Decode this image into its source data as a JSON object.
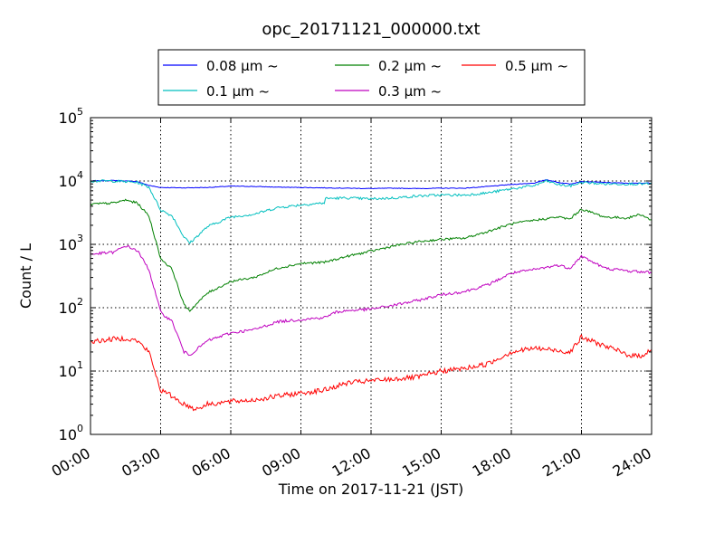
{
  "chart_data": {
    "type": "line",
    "title": "opc_20171121_000000.txt",
    "xlabel": "Time on 2017-11-21 (JST)",
    "ylabel": "Count / L",
    "xlim": [
      "00:00",
      "24:00"
    ],
    "ylim": [
      1,
      100000
    ],
    "yscale": "log",
    "grid": true,
    "legend_position": "top-center",
    "x_tick_labels": [
      "00:00",
      "03:00",
      "06:00",
      "09:00",
      "12:00",
      "15:00",
      "18:00",
      "21:00",
      "24:00"
    ],
    "y_tick_labels": [
      {
        "base": "10",
        "exp": "0",
        "value": 1
      },
      {
        "base": "10",
        "exp": "1",
        "value": 10
      },
      {
        "base": "10",
        "exp": "2",
        "value": 100
      },
      {
        "base": "10",
        "exp": "3",
        "value": 1000
      },
      {
        "base": "10",
        "exp": "4",
        "value": 10000
      },
      {
        "base": "10",
        "exp": "5",
        "value": 100000
      }
    ],
    "series": [
      {
        "name": "0.08 μm ~",
        "color": "#0000ff",
        "points": [
          [
            "00:00",
            10000
          ],
          [
            "01:00",
            10200
          ],
          [
            "02:00",
            9800
          ],
          [
            "02:30",
            8500
          ],
          [
            "03:00",
            7900
          ],
          [
            "04:00",
            7800
          ],
          [
            "05:00",
            7900
          ],
          [
            "06:00",
            8300
          ],
          [
            "07:00",
            8200
          ],
          [
            "08:00",
            8000
          ],
          [
            "09:00",
            7900
          ],
          [
            "10:00",
            7800
          ],
          [
            "11:00",
            7700
          ],
          [
            "12:00",
            7600
          ],
          [
            "13:00",
            7700
          ],
          [
            "14:00",
            7600
          ],
          [
            "15:00",
            7700
          ],
          [
            "16:00",
            7700
          ],
          [
            "17:00",
            8200
          ],
          [
            "18:00",
            8800
          ],
          [
            "19:00",
            9300
          ],
          [
            "19:30",
            10500
          ],
          [
            "20:00",
            9500
          ],
          [
            "20:30",
            9000
          ],
          [
            "21:00",
            9800
          ],
          [
            "22:00",
            9500
          ],
          [
            "23:00",
            9200
          ],
          [
            "24:00",
            9300
          ]
        ]
      },
      {
        "name": "0.1 μm ~",
        "color": "#00bfbf",
        "points": [
          [
            "00:00",
            10000
          ],
          [
            "01:00",
            10000
          ],
          [
            "02:00",
            9500
          ],
          [
            "02:30",
            8000
          ],
          [
            "03:00",
            3500
          ],
          [
            "03:30",
            2800
          ],
          [
            "04:00",
            1300
          ],
          [
            "04:15",
            1050
          ],
          [
            "05:00",
            1900
          ],
          [
            "06:00",
            2700
          ],
          [
            "07:00",
            3000
          ],
          [
            "08:00",
            3800
          ],
          [
            "09:00",
            4200
          ],
          [
            "10:00",
            4500
          ],
          [
            "10:01",
            5300
          ],
          [
            "11:00",
            5400
          ],
          [
            "12:00",
            5200
          ],
          [
            "13:00",
            5400
          ],
          [
            "14:00",
            5800
          ],
          [
            "15:00",
            6000
          ],
          [
            "16:00",
            6000
          ],
          [
            "17:00",
            6500
          ],
          [
            "18:00",
            7500
          ],
          [
            "19:00",
            8500
          ],
          [
            "19:30",
            10000
          ],
          [
            "20:00",
            8800
          ],
          [
            "20:30",
            8300
          ],
          [
            "21:00",
            9500
          ],
          [
            "22:00",
            9000
          ],
          [
            "23:00",
            9000
          ],
          [
            "24:00",
            9000
          ]
        ]
      },
      {
        "name": "0.2 μm ~",
        "color": "#008000",
        "points": [
          [
            "00:00",
            4300
          ],
          [
            "01:00",
            4500
          ],
          [
            "01:30",
            5000
          ],
          [
            "02:00",
            4500
          ],
          [
            "02:30",
            2800
          ],
          [
            "03:00",
            600
          ],
          [
            "03:30",
            400
          ],
          [
            "04:00",
            110
          ],
          [
            "04:15",
            90
          ],
          [
            "05:00",
            170
          ],
          [
            "06:00",
            260
          ],
          [
            "07:00",
            300
          ],
          [
            "08:00",
            420
          ],
          [
            "09:00",
            500
          ],
          [
            "10:00",
            520
          ],
          [
            "11:00",
            650
          ],
          [
            "12:00",
            780
          ],
          [
            "13:00",
            950
          ],
          [
            "14:00",
            1100
          ],
          [
            "15:00",
            1200
          ],
          [
            "16:00",
            1250
          ],
          [
            "17:00",
            1600
          ],
          [
            "18:00",
            2100
          ],
          [
            "19:00",
            2400
          ],
          [
            "20:00",
            2700
          ],
          [
            "20:30",
            2500
          ],
          [
            "21:00",
            3600
          ],
          [
            "22:00",
            2700
          ],
          [
            "23:00",
            2600
          ],
          [
            "23:30",
            3000
          ],
          [
            "24:00",
            2400
          ]
        ]
      },
      {
        "name": "0.3 μm ~",
        "color": "#bf00bf",
        "points": [
          [
            "00:00",
            700
          ],
          [
            "01:00",
            750
          ],
          [
            "01:30",
            950
          ],
          [
            "02:00",
            800
          ],
          [
            "02:30",
            400
          ],
          [
            "03:00",
            85
          ],
          [
            "03:30",
            60
          ],
          [
            "04:00",
            20
          ],
          [
            "04:15",
            18
          ],
          [
            "05:00",
            30
          ],
          [
            "06:00",
            40
          ],
          [
            "07:00",
            45
          ],
          [
            "08:00",
            60
          ],
          [
            "09:00",
            65
          ],
          [
            "10:00",
            70
          ],
          [
            "10:30",
            85
          ],
          [
            "11:00",
            90
          ],
          [
            "12:00",
            95
          ],
          [
            "13:00",
            110
          ],
          [
            "14:00",
            130
          ],
          [
            "15:00",
            160
          ],
          [
            "16:00",
            180
          ],
          [
            "17:00",
            230
          ],
          [
            "18:00",
            350
          ],
          [
            "19:00",
            400
          ],
          [
            "20:00",
            470
          ],
          [
            "20:30",
            420
          ],
          [
            "21:00",
            650
          ],
          [
            "22:00",
            420
          ],
          [
            "23:00",
            380
          ],
          [
            "24:00",
            360
          ]
        ]
      },
      {
        "name": "0.5 μm ~",
        "color": "#ff0000",
        "points": [
          [
            "00:00",
            29
          ],
          [
            "01:00",
            32
          ],
          [
            "01:30",
            33
          ],
          [
            "02:00",
            30
          ],
          [
            "02:30",
            20
          ],
          [
            "03:00",
            5
          ],
          [
            "03:30",
            4
          ],
          [
            "04:00",
            3
          ],
          [
            "04:30",
            2.5
          ],
          [
            "05:00",
            3
          ],
          [
            "06:00",
            3.3
          ],
          [
            "07:00",
            3.5
          ],
          [
            "08:00",
            4
          ],
          [
            "09:00",
            4.5
          ],
          [
            "10:00",
            5
          ],
          [
            "11:00",
            6.5
          ],
          [
            "12:00",
            7
          ],
          [
            "13:00",
            7.5
          ],
          [
            "14:00",
            8
          ],
          [
            "15:00",
            10
          ],
          [
            "16:00",
            11
          ],
          [
            "17:00",
            13
          ],
          [
            "18:00",
            20
          ],
          [
            "19:00",
            23
          ],
          [
            "20:00",
            21
          ],
          [
            "20:30",
            20
          ],
          [
            "21:00",
            34
          ],
          [
            "22:00",
            25
          ],
          [
            "23:00",
            18
          ],
          [
            "23:30",
            17
          ],
          [
            "24:00",
            22
          ]
        ]
      }
    ]
  }
}
